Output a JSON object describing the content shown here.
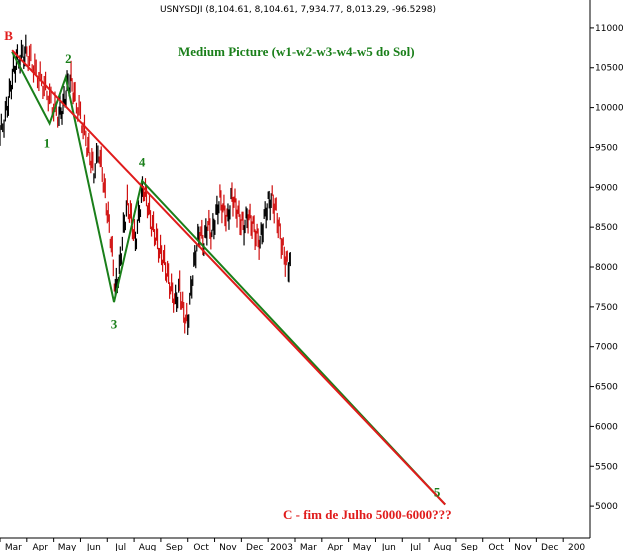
{
  "header": "USNYSDJI (8,104.61, 8,104.61, 7,934.77, 8,013.29, -96.5298)",
  "chart_data": {
    "type": "line",
    "title": "Medium Picture (w1-w2-w3-w4-w5 do Sol)",
    "note": "C - fim de Julho 5000-6000???",
    "ylim": [
      4600,
      11350
    ],
    "y_ticks": [
      5000,
      5500,
      6000,
      6500,
      7000,
      7500,
      8000,
      8500,
      9000,
      9500,
      10000,
      10500,
      11000
    ],
    "y_tick_labels": [
      "5000",
      "5500",
      "6000",
      "6500",
      "7000",
      "7500",
      "8000",
      "8500",
      "9000",
      "9500",
      "10000",
      "10500",
      "11000"
    ],
    "x_ticks": [
      "Mar",
      "Apr",
      "May",
      "Jun",
      "Jul",
      "Aug",
      "Sep",
      "Oct",
      "Nov",
      "Dec",
      "2003",
      "Mar",
      "Apr",
      "May",
      "Jun",
      "Jul",
      "Aug",
      "Sep",
      "Oct",
      "Nov",
      "Dec",
      "200"
    ],
    "x_range": [
      0,
      22
    ],
    "grid": false,
    "wave_labels": [
      {
        "label": "B",
        "x": 0.32,
        "y": 10850,
        "color": "#e01b1b"
      },
      {
        "label": "1",
        "x": 1.75,
        "y": 9500,
        "color": "#1a7f1a"
      },
      {
        "label": "2",
        "x": 2.55,
        "y": 10560,
        "color": "#1a7f1a"
      },
      {
        "label": "3",
        "x": 4.25,
        "y": 7230,
        "color": "#1a7f1a"
      },
      {
        "label": "4",
        "x": 5.3,
        "y": 9260,
        "color": "#1a7f1a"
      },
      {
        "label": "5",
        "x": 16.3,
        "y": 5120,
        "color": "#1a7f1a"
      }
    ],
    "series": [
      {
        "color": "#1a7f1a",
        "points": [
          [
            0.45,
            10700
          ],
          [
            1.85,
            9800
          ],
          [
            2.45,
            10380
          ],
          [
            4.25,
            7560
          ],
          [
            5.3,
            9080
          ],
          [
            16.6,
            5020
          ]
        ]
      },
      {
        "color": "#e01b1b",
        "points": [
          [
            0.45,
            10720
          ],
          [
            16.6,
            5020
          ]
        ]
      }
    ],
    "price_path": [
      [
        0.0,
        9650
      ],
      [
        0.2,
        9900
      ],
      [
        0.35,
        10150
      ],
      [
        0.5,
        10450
      ],
      [
        0.65,
        10600
      ],
      [
        0.85,
        10650
      ],
      [
        1.0,
        10700
      ],
      [
        1.2,
        10550
      ],
      [
        1.4,
        10400
      ],
      [
        1.6,
        10300
      ],
      [
        1.8,
        10150
      ],
      [
        2.0,
        10000
      ],
      [
        2.2,
        9900
      ],
      [
        2.35,
        10000
      ],
      [
        2.5,
        10250
      ],
      [
        2.65,
        10350
      ],
      [
        2.8,
        10100
      ],
      [
        3.0,
        9900
      ],
      [
        3.2,
        9600
      ],
      [
        3.35,
        9400
      ],
      [
        3.5,
        9200
      ],
      [
        3.7,
        9450
      ],
      [
        3.85,
        9100
      ],
      [
        4.0,
        8700
      ],
      [
        4.15,
        8300
      ],
      [
        4.3,
        7700
      ],
      [
        4.45,
        7950
      ],
      [
        4.6,
        8450
      ],
      [
        4.75,
        8800
      ],
      [
        4.9,
        8600
      ],
      [
        5.05,
        8300
      ],
      [
        5.2,
        8700
      ],
      [
        5.35,
        9000
      ],
      [
        5.5,
        8800
      ],
      [
        5.65,
        8550
      ],
      [
        5.8,
        8400
      ],
      [
        5.95,
        8200
      ],
      [
        6.1,
        8100
      ],
      [
        6.25,
        7900
      ],
      [
        6.4,
        7700
      ],
      [
        6.55,
        7550
      ],
      [
        6.7,
        7750
      ],
      [
        6.85,
        7400
      ],
      [
        7.0,
        7300
      ],
      [
        7.15,
        7800
      ],
      [
        7.3,
        8200
      ],
      [
        7.45,
        8450
      ],
      [
        7.6,
        8300
      ],
      [
        7.75,
        8550
      ],
      [
        7.9,
        8400
      ],
      [
        8.05,
        8650
      ],
      [
        8.2,
        8850
      ],
      [
        8.35,
        8700
      ],
      [
        8.5,
        8600
      ],
      [
        8.65,
        8900
      ],
      [
        8.8,
        8750
      ],
      [
        8.95,
        8600
      ],
      [
        9.1,
        8500
      ],
      [
        9.25,
        8650
      ],
      [
        9.4,
        8550
      ],
      [
        9.55,
        8400
      ],
      [
        9.7,
        8300
      ],
      [
        9.85,
        8600
      ],
      [
        10.0,
        8800
      ],
      [
        10.15,
        8850
      ],
      [
        10.3,
        8700
      ],
      [
        10.45,
        8400
      ],
      [
        10.6,
        8150
      ],
      [
        10.75,
        8000
      ],
      [
        10.85,
        8050
      ]
    ]
  }
}
